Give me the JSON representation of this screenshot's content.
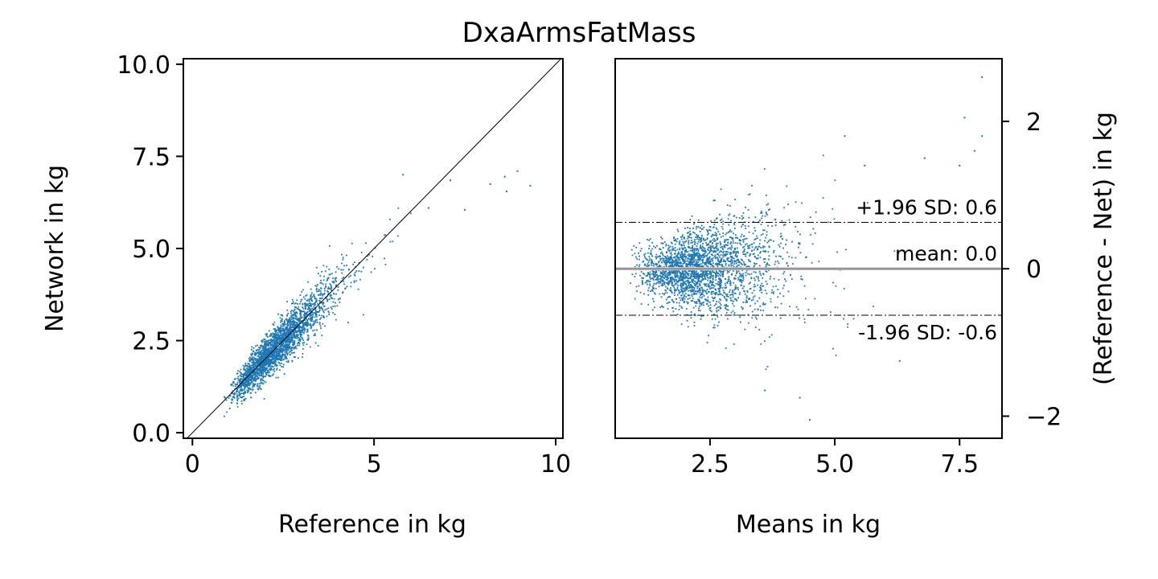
{
  "title": "DxaArmsFatMass",
  "chart_data": [
    {
      "type": "scatter",
      "xlabel": "Reference in kg",
      "ylabel": "Network in kg",
      "xlim": [
        -0.25,
        10.2
      ],
      "ylim": [
        -0.15,
        10.15
      ],
      "xticks": [
        0,
        5,
        10
      ],
      "xticklabels": [
        "0",
        "5",
        "10"
      ],
      "yticks": [
        0.0,
        2.5,
        5.0,
        7.5,
        10.0
      ],
      "yticklabels": [
        "0.0",
        "2.5",
        "5.0",
        "7.5",
        "10.0"
      ],
      "identity_line": {
        "from": [
          -0.25,
          -0.25
        ],
        "to": [
          10.2,
          10.2
        ]
      },
      "point_color": "#1f77b4",
      "outliers": [
        {
          "x": 8.95,
          "y": 7.1
        },
        {
          "x": 9.3,
          "y": 6.7
        },
        {
          "x": 8.6,
          "y": 6.95
        },
        {
          "x": 8.2,
          "y": 6.75
        },
        {
          "x": 8.65,
          "y": 6.55
        },
        {
          "x": 7.1,
          "y": 6.85
        },
        {
          "x": 5.8,
          "y": 7.0
        },
        {
          "x": 6.5,
          "y": 6.1
        },
        {
          "x": 7.5,
          "y": 6.05
        }
      ],
      "point_cloud": {
        "n_points": 2600,
        "x_lognormal_median": 2.3,
        "x_lognormal_sigma": 0.3,
        "x_range": [
          0.8,
          6.6
        ],
        "y_bias_high_x": -0.4,
        "y_noise_sd": 0.25
      }
    },
    {
      "type": "scatter",
      "xlabel": "Means in kg",
      "ylabel": "(Reference - Net) in kg",
      "y_axis_side": "right",
      "xlim": [
        0.6,
        8.35
      ],
      "ylim": [
        -2.3,
        2.85
      ],
      "xticks": [
        2.5,
        5.0,
        7.5
      ],
      "xticklabels": [
        "2.5",
        "5.0",
        "7.5"
      ],
      "yticks": [
        -2,
        0,
        2
      ],
      "yticklabels": [
        "−2",
        "0",
        "2"
      ],
      "point_color": "#1f77b4",
      "reference_lines": [
        {
          "value": 0.63,
          "style": "dash-dot",
          "label": "+1.96 SD: 0.6"
        },
        {
          "value": 0.0,
          "style": "solid-gray",
          "label": "mean: 0.0"
        },
        {
          "value": -0.63,
          "style": "dash-dot",
          "label": "-1.96 SD: -0.6"
        }
      ],
      "outliers": [
        {
          "x": 7.95,
          "y": 2.6
        },
        {
          "x": 7.6,
          "y": 2.05
        },
        {
          "x": 7.95,
          "y": 1.8
        },
        {
          "x": 7.8,
          "y": 1.6
        },
        {
          "x": 7.5,
          "y": 1.4
        },
        {
          "x": 6.8,
          "y": 1.5
        },
        {
          "x": 4.5,
          "y": -2.05
        },
        {
          "x": 4.3,
          "y": -1.75
        },
        {
          "x": 3.6,
          "y": -1.65
        },
        {
          "x": 6.3,
          "y": -1.25
        },
        {
          "x": 5.2,
          "y": 1.8
        },
        {
          "x": 5.6,
          "y": 1.4
        }
      ],
      "point_cloud": {
        "n_points": 2600,
        "x_lognormal_median": 2.3,
        "x_lognormal_sigma": 0.3,
        "x_range": [
          0.9,
          6.5
        ],
        "diff_sd_base": 0.18,
        "diff_sd_slope": 0.12
      }
    }
  ]
}
